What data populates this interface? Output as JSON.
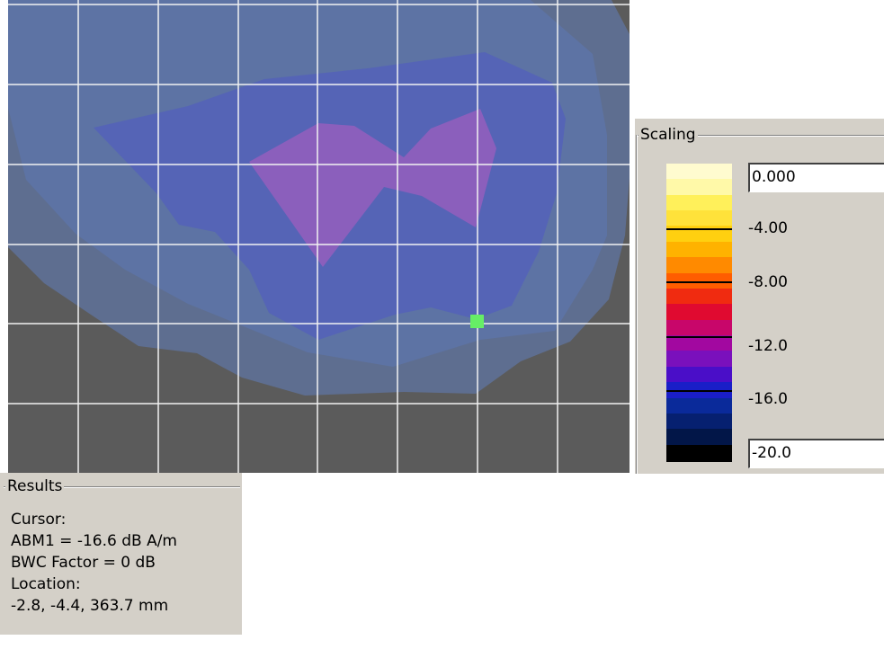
{
  "colors": {
    "plot_background": "#5b5b5b",
    "grid": "#f2f2f2",
    "cursor_marker": "#66ee66",
    "panel": "#d4d0c8",
    "contour_levels": [
      "#5e6e90",
      "#5d73a4",
      "#5564b6",
      "#8b5fbc"
    ]
  },
  "scaling": {
    "title": "Scaling",
    "max_value": "0.000",
    "min_value": "-20.0",
    "ticks": [
      "-4.00",
      "-8.00",
      "-12.0",
      "-16.0"
    ],
    "colorbar": [
      "#fffbcf",
      "#fff9a8",
      "#fff05a",
      "#ffe23a",
      "#ffd010",
      "#ffb200",
      "#ff8a00",
      "#ff5d00",
      "#f02b10",
      "#e00a30",
      "#c8066a",
      "#a208a0",
      "#7a10bc",
      "#4a0ec8",
      "#1a1ec8",
      "#0a2a9a",
      "#062070",
      "#021648",
      "#000000"
    ]
  },
  "results": {
    "title": "Results",
    "lines": [
      "Cursor:",
      "ABM1 = -16.6 dB A/m",
      "BWC Factor = 0 dB",
      "Location:",
      "-2.8, -4.4, 363.7 mm"
    ]
  }
}
